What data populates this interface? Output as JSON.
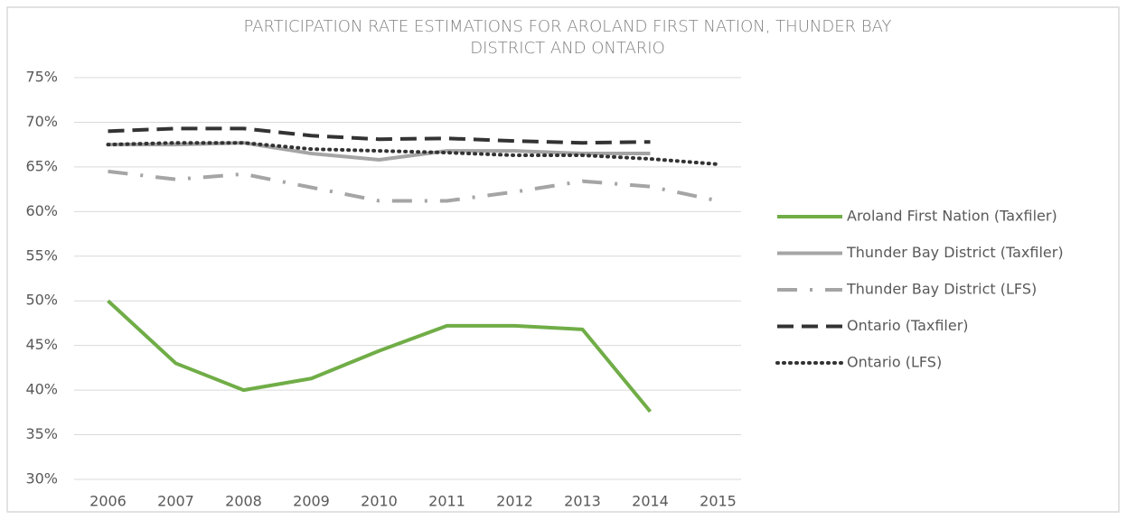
{
  "chart_data": {
    "type": "line",
    "title": "PARTICIPATION RATE ESTIMATIONS FOR AROLAND FIRST NATION, THUNDER BAY DISTRICT AND ONTARIO",
    "categories": [
      "2006",
      "2007",
      "2008",
      "2009",
      "2010",
      "2011",
      "2012",
      "2013",
      "2014",
      "2015"
    ],
    "series": [
      {
        "name": "Aroland First Nation (Taxfiler)",
        "color": "#70ad47",
        "dash": "solid",
        "values": [
          50,
          43,
          40,
          41.3,
          44.4,
          47.2,
          47.2,
          46.8,
          37.6,
          null
        ]
      },
      {
        "name": "Thunder Bay District (Taxfiler)",
        "color": "#a5a5a5",
        "dash": "solid",
        "values": [
          67.5,
          67.5,
          67.7,
          66.5,
          65.8,
          66.8,
          66.8,
          66.5,
          66.5,
          null
        ]
      },
      {
        "name": "Thunder Bay District (LFS)",
        "color": "#a5a5a5",
        "dash": "dashdot",
        "values": [
          64.5,
          63.6,
          64.2,
          62.7,
          61.2,
          61.2,
          62.2,
          63.4,
          62.8,
          61.2
        ]
      },
      {
        "name": "Ontario (Taxfiler)",
        "color": "#333333",
        "dash": "dash",
        "values": [
          69.0,
          69.3,
          69.3,
          68.5,
          68.1,
          68.2,
          67.9,
          67.7,
          67.8,
          null
        ]
      },
      {
        "name": "Ontario (LFS)",
        "color": "#333333",
        "dash": "dot",
        "values": [
          67.5,
          67.7,
          67.7,
          67.0,
          66.8,
          66.6,
          66.3,
          66.3,
          65.9,
          65.3
        ]
      }
    ],
    "ylim": [
      30,
      75
    ],
    "yticks": [
      {
        "value": 30,
        "label": "30%"
      },
      {
        "value": 35,
        "label": "35%"
      },
      {
        "value": 40,
        "label": "40%"
      },
      {
        "value": 45,
        "label": "45%"
      },
      {
        "value": 50,
        "label": "50%"
      },
      {
        "value": 55,
        "label": "55%"
      },
      {
        "value": 60,
        "label": "60%"
      },
      {
        "value": 65,
        "label": "65%"
      },
      {
        "value": 70,
        "label": "70%"
      },
      {
        "value": 75,
        "label": "75%"
      }
    ],
    "grid": true,
    "legend": "right"
  }
}
